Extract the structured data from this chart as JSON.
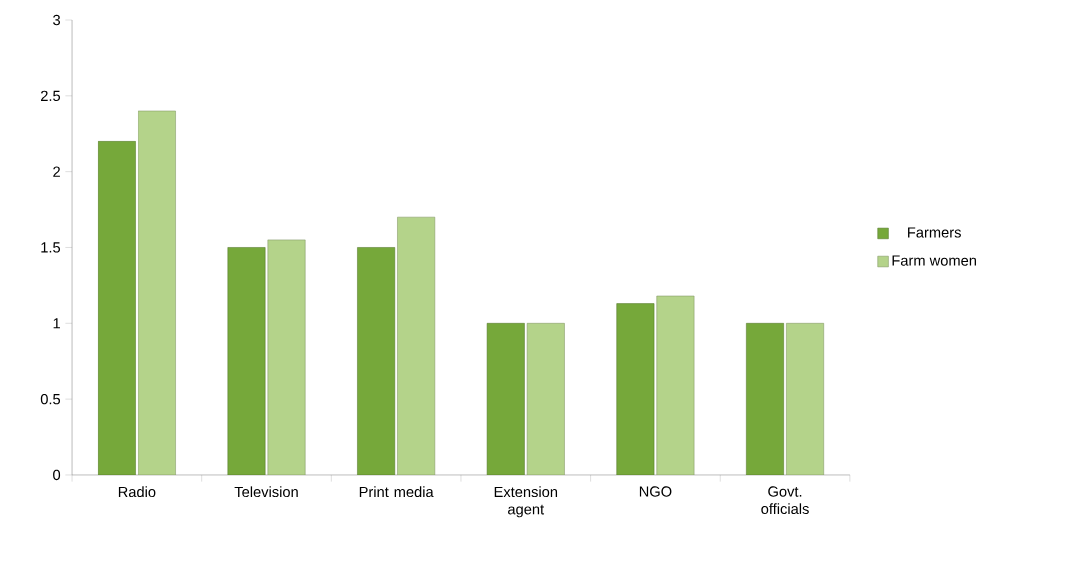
{
  "chart_data": {
    "type": "bar",
    "categories": [
      "Radio",
      "Television",
      "Print media",
      "Extension agent",
      "NGO",
      "Govt. officials"
    ],
    "series": [
      {
        "name": "Farmers",
        "color": "#76a83a",
        "values": [
          2.2,
          1.5,
          1.5,
          1,
          1.13,
          1
        ]
      },
      {
        "name": "Farm women",
        "color": "#b4d38a",
        "values": [
          2.4,
          1.55,
          1.7,
          1,
          1.18,
          1
        ]
      }
    ],
    "ylim": [
      0,
      3
    ],
    "yticks": [
      0,
      0.5,
      1,
      1.5,
      2,
      2.5,
      3
    ],
    "grid": false,
    "legend": "right"
  }
}
